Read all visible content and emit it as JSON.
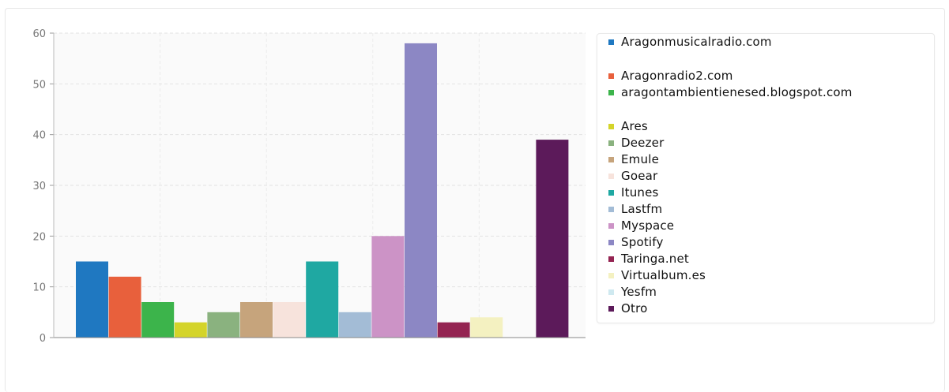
{
  "chart_data": {
    "type": "bar",
    "title": "",
    "xlabel": "",
    "ylabel": "",
    "ylim": [
      0,
      60
    ],
    "yticks": [
      0,
      10,
      20,
      30,
      40,
      50,
      60
    ],
    "grid": true,
    "legend_position": "right",
    "categories": [
      "Aragonmusicalradio.com",
      "Aragonradio2.com",
      "aragontambientienesed.blogspot.com",
      "Ares",
      "Deezer",
      "Emule",
      "Goear",
      "Itunes",
      "Lastfm",
      "Myspace",
      "Spotify",
      "Taringa.net",
      "Virtualbum.es",
      "Yesfm",
      "Otro"
    ],
    "values": [
      15,
      12,
      7,
      3,
      5,
      7,
      7,
      15,
      5,
      20,
      58,
      3,
      4,
      0,
      39
    ],
    "colors": [
      "#1f78c1",
      "#e8603c",
      "#3cb44b",
      "#d4d42a",
      "#8ab27f",
      "#c6a47c",
      "#f7e3dc",
      "#1fa8a2",
      "#a3bcd6",
      "#cc93c6",
      "#8c87c4",
      "#942452",
      "#f4f1c1",
      "#cfe9f0",
      "#5c1a5a"
    ]
  }
}
